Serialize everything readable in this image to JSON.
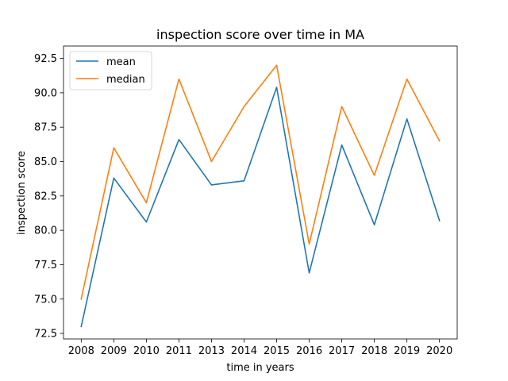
{
  "chart_data": {
    "type": "line",
    "title": "inspection score over time in MA",
    "xlabel": "time in years",
    "ylabel": "inspection score",
    "categories": [
      "2008",
      "2009",
      "2010",
      "2011",
      "2013",
      "2014",
      "2015",
      "2016",
      "2017",
      "2018",
      "2019",
      "2020"
    ],
    "series": [
      {
        "name": "mean",
        "color": "#1f77b4",
        "values": [
          73.0,
          83.8,
          80.6,
          86.6,
          83.3,
          83.6,
          90.4,
          76.9,
          86.2,
          80.4,
          88.1,
          80.7
        ]
      },
      {
        "name": "median",
        "color": "#ff7f0e",
        "values": [
          75.0,
          86.0,
          82.0,
          91.0,
          85.0,
          89.0,
          92.0,
          79.0,
          89.0,
          84.0,
          91.0,
          86.5
        ]
      }
    ],
    "ylim": [
      72.1,
      93.4
    ],
    "yticks": [
      "72.5",
      "75.0",
      "77.5",
      "80.0",
      "82.5",
      "85.0",
      "87.5",
      "90.0",
      "92.5"
    ],
    "grid": false,
    "legend_position": "top-left"
  }
}
